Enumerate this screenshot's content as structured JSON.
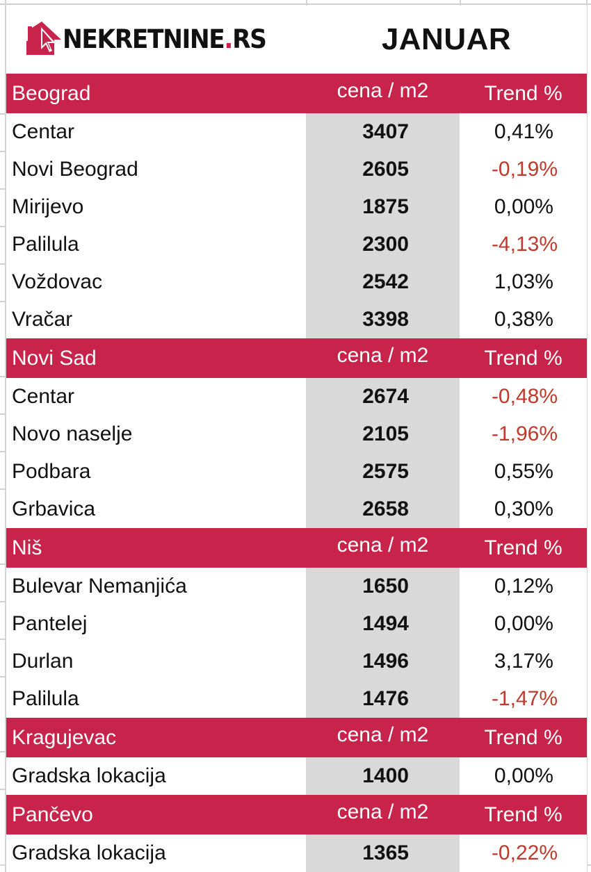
{
  "header": {
    "logo_text": "NEKRETNINE",
    "logo_dot": ".",
    "logo_suffix": "RS",
    "month": "JANUAR"
  },
  "colors": {
    "header_bg": "#c8234a",
    "price_col_bg": "#d9d9d9",
    "negative_text": "#bf3a2c",
    "text": "#111111"
  },
  "sections": [
    {
      "city": "Beograd",
      "price_header": "cena / m2",
      "trend_header": "Trend %",
      "rows": [
        {
          "district": "Centar",
          "price": "3407",
          "trend": "0,41%",
          "negative": false
        },
        {
          "district": "Novi Beograd",
          "price": "2605",
          "trend": "-0,19%",
          "negative": true
        },
        {
          "district": "Mirijevo",
          "price": "1875",
          "trend": "0,00%",
          "negative": false
        },
        {
          "district": "Palilula",
          "price": "2300",
          "trend": "-4,13%",
          "negative": true
        },
        {
          "district": "Voždovac",
          "price": "2542",
          "trend": "1,03%",
          "negative": false
        },
        {
          "district": "Vračar",
          "price": "3398",
          "trend": "0,38%",
          "negative": false
        }
      ]
    },
    {
      "city": "Novi Sad",
      "price_header": "cena / m2",
      "trend_header": "Trend %",
      "rows": [
        {
          "district": "Centar",
          "price": "2674",
          "trend": "-0,48%",
          "negative": true
        },
        {
          "district": "Novo naselje",
          "price": "2105",
          "trend": "-1,96%",
          "negative": true
        },
        {
          "district": "Podbara",
          "price": "2575",
          "trend": "0,55%",
          "negative": false
        },
        {
          "district": "Grbavica",
          "price": "2658",
          "trend": "0,30%",
          "negative": false
        }
      ]
    },
    {
      "city": "Niš",
      "price_header": "cena / m2",
      "trend_header": "Trend %",
      "rows": [
        {
          "district": "Bulevar Nemanjića",
          "price": "1650",
          "trend": "0,12%",
          "negative": false
        },
        {
          "district": "Pantelej",
          "price": "1494",
          "trend": "0,00%",
          "negative": false
        },
        {
          "district": "Durlan",
          "price": "1496",
          "trend": "3,17%",
          "negative": false
        },
        {
          "district": "Palilula",
          "price": "1476",
          "trend": "-1,47%",
          "negative": true
        }
      ]
    },
    {
      "city": "Kragujevac",
      "price_header": "cena / m2",
      "trend_header": "Trend %",
      "rows": [
        {
          "district": "Gradska lokacija",
          "price": "1400",
          "trend": "0,00%",
          "negative": false
        }
      ]
    },
    {
      "city": "Pančevo",
      "price_header": "cena / m2",
      "trend_header": "Trend %",
      "rows": [
        {
          "district": "Gradska lokacija",
          "price": "1365",
          "trend": "-0,22%",
          "negative": true
        }
      ]
    }
  ]
}
